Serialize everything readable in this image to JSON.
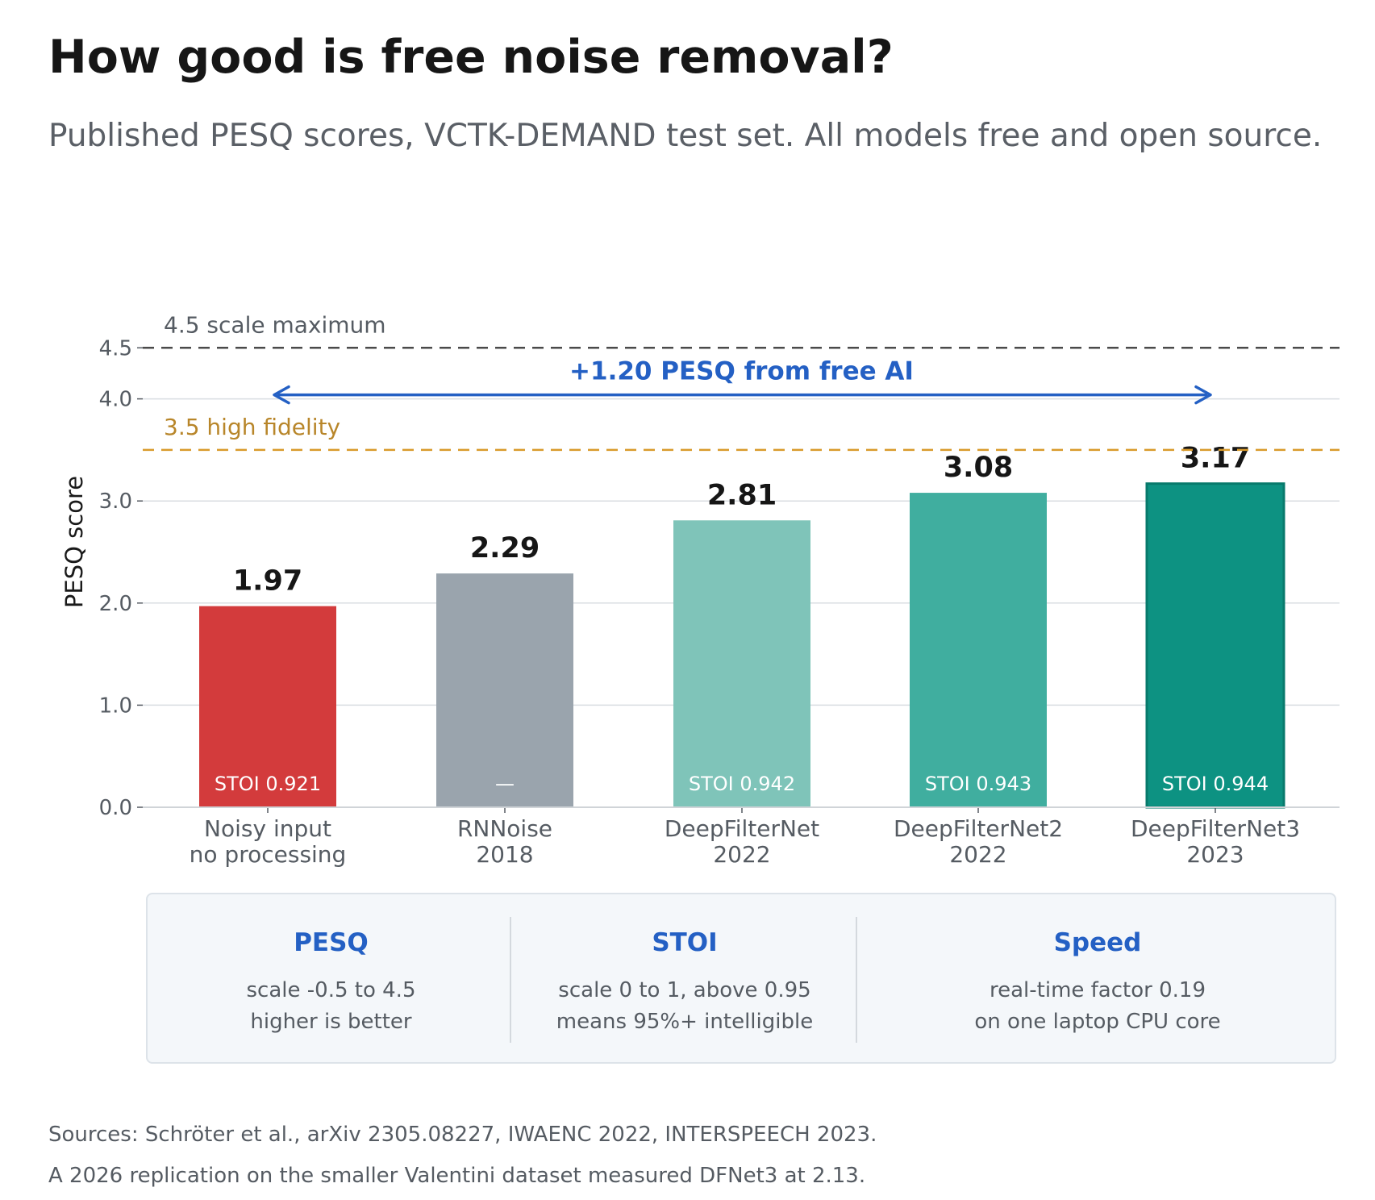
{
  "title": "How good is free noise removal?",
  "subtitle": "Published PESQ scores, VCTK-DEMAND test set. All models free and open source.",
  "chart_data": {
    "type": "bar",
    "ylabel": "PESQ score",
    "ylim": [
      0,
      4.5
    ],
    "yticks": [
      "0.0",
      "1.0",
      "2.0",
      "3.0",
      "4.0",
      "4.5"
    ],
    "ytick_values": [
      0,
      1,
      2,
      3,
      4,
      4.5
    ],
    "grid": true,
    "categories": [
      [
        "Noisy input",
        "no processing"
      ],
      [
        "RNNoise",
        "2018"
      ],
      [
        "DeepFilterNet",
        "2022"
      ],
      [
        "DeepFilterNet2",
        "2022"
      ],
      [
        "DeepFilterNet3",
        "2023"
      ]
    ],
    "values": [
      1.97,
      2.29,
      2.81,
      3.08,
      3.17
    ],
    "value_labels": [
      "1.97",
      "2.29",
      "2.81",
      "3.08",
      "3.17"
    ],
    "inner_labels": [
      "STOI 0.921",
      "—",
      "STOI 0.942",
      "STOI 0.943",
      "STOI 0.944"
    ],
    "colors": [
      "#d33b3c",
      "#9aa4ad",
      "#7fc4b9",
      "#40ae9f",
      "#0d9282"
    ],
    "reference_lines": [
      {
        "value": 4.5,
        "label": "4.5  scale maximum",
        "color": "#4a4a4a"
      },
      {
        "value": 3.5,
        "label": "3.5  high fidelity",
        "color": "#d99a2b",
        "label_color": "#b8862a"
      }
    ],
    "annotation": {
      "text": "+1.20 PESQ from free AI",
      "y": 4.0,
      "from_index": 0,
      "to_index": 4,
      "color": "#2460c4"
    }
  },
  "legend": [
    {
      "title": "PESQ",
      "lines": [
        "scale -0.5 to 4.5",
        "higher is better"
      ]
    },
    {
      "title": "STOI",
      "lines": [
        "scale 0 to 1, above 0.95",
        "means 95%+ intelligible"
      ]
    },
    {
      "title": "Speed",
      "lines": [
        "real-time factor 0.19",
        "on one laptop CPU core"
      ]
    }
  ],
  "footnotes": [
    "Sources: Schröter et al., arXiv 2305.08227, IWAENC 2022, INTERSPEECH 2023.",
    "A 2026 replication on the smaller Valentini dataset measured DFNet3 at 2.13."
  ]
}
